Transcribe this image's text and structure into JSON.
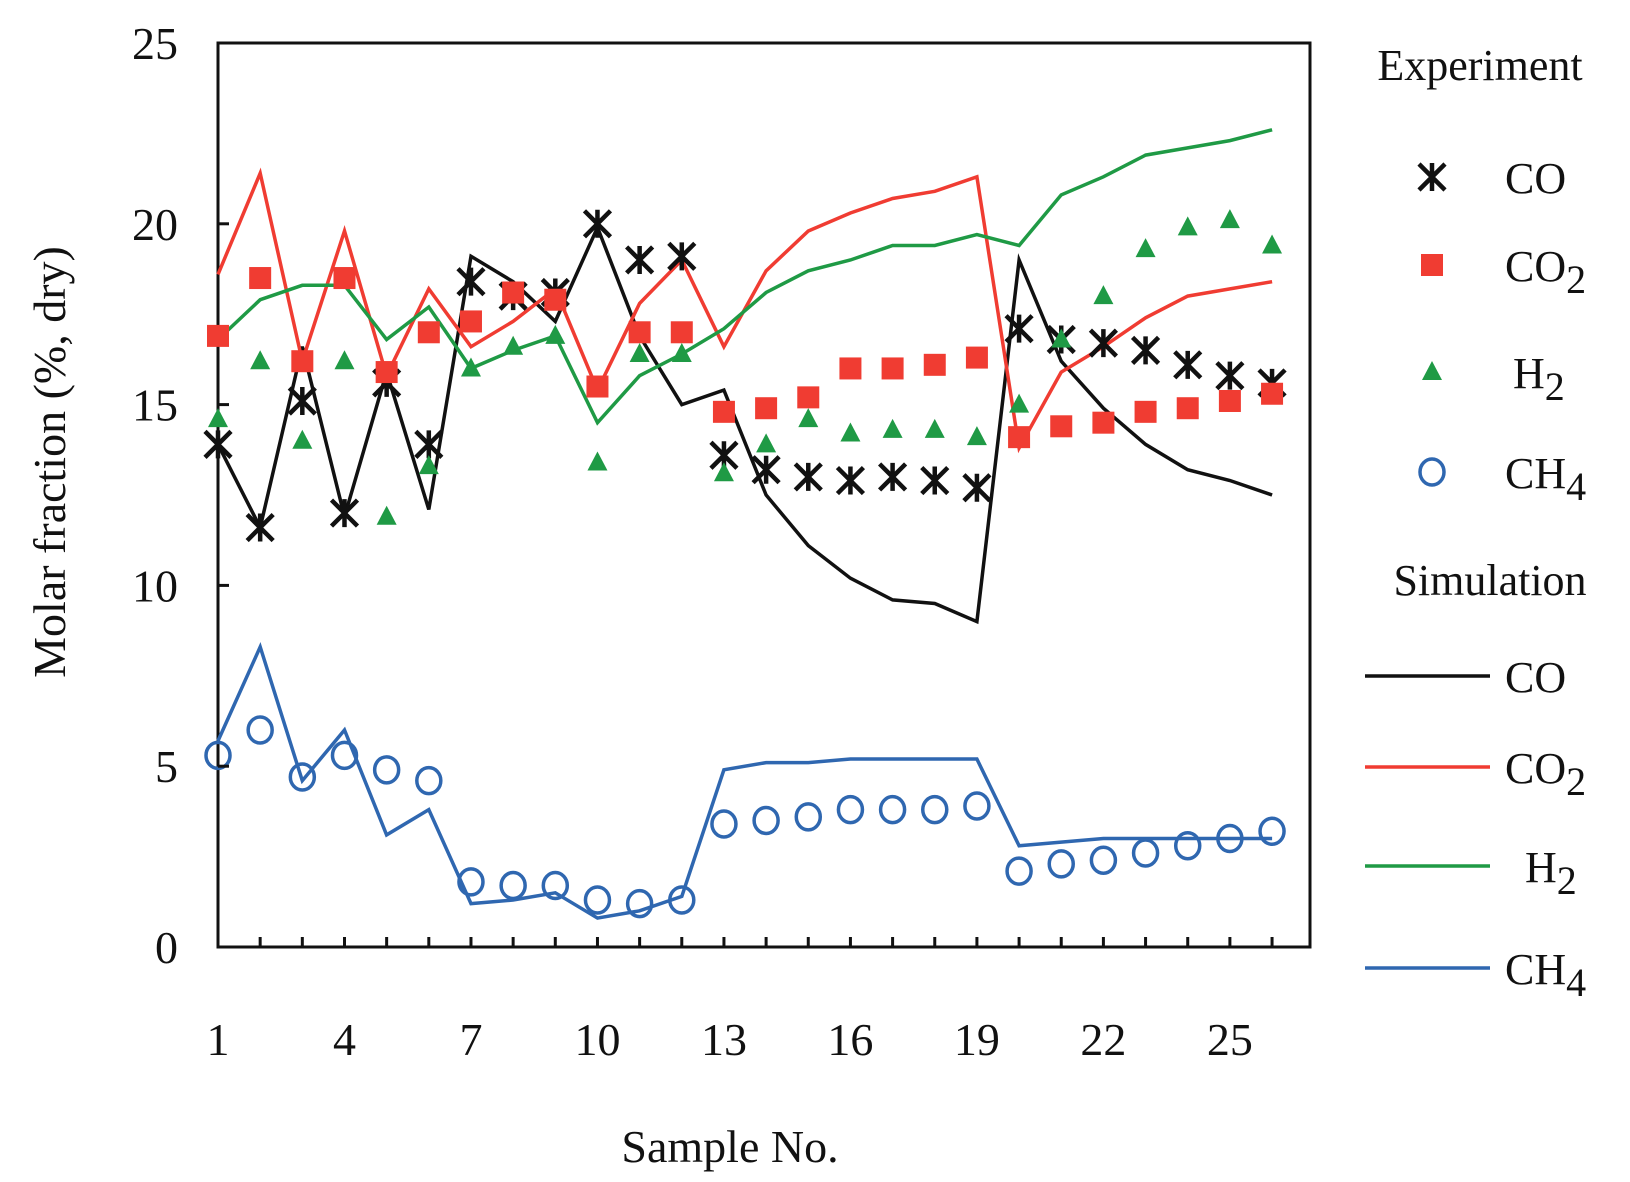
{
  "chart_data": {
    "type": "line",
    "xlabel": "Sample No.",
    "ylabel": "Molar fraction (%, dry)",
    "xlim": [
      1,
      26.9
    ],
    "ylim": [
      0,
      25
    ],
    "x_ticks": [
      1,
      4,
      7,
      10,
      13,
      16,
      19,
      22,
      25
    ],
    "y_ticks": [
      0,
      5,
      10,
      15,
      20,
      25
    ],
    "grid": false,
    "legend_position": "right, outside plot",
    "x": [
      1,
      2,
      3,
      4,
      5,
      6,
      7,
      8,
      9,
      10,
      11,
      12,
      13,
      14,
      15,
      16,
      17,
      18,
      19,
      20,
      21,
      22,
      23,
      24,
      25,
      26
    ],
    "legend": {
      "experiment_title": "Experiment",
      "simulation_title": "Simulation",
      "experiment_entries": [
        {
          "label": "CO",
          "sub": "",
          "marker": "asterisk",
          "color": "#111111"
        },
        {
          "label": "CO",
          "sub": "2",
          "marker": "square",
          "color": "#f03c32"
        },
        {
          "label": "H",
          "sub": "2",
          "marker": "triangle",
          "color": "#1f9a45"
        },
        {
          "label": "CH",
          "sub": "4",
          "marker": "circle",
          "color": "#2f67b0"
        }
      ],
      "simulation_entries": [
        {
          "label": "CO",
          "sub": "",
          "color": "#111111"
        },
        {
          "label": "CO",
          "sub": "2",
          "color": "#f03c32"
        },
        {
          "label": "H",
          "sub": "2",
          "color": "#1f9a45"
        },
        {
          "label": "CH",
          "sub": "4",
          "color": "#2f67b0"
        }
      ]
    },
    "experiment": [
      {
        "name": "CO",
        "marker": "asterisk",
        "color": "#111111",
        "values": [
          13.9,
          11.6,
          15.1,
          12.0,
          15.6,
          13.9,
          18.4,
          18.0,
          18.1,
          20.0,
          19.0,
          19.1,
          13.6,
          13.2,
          13.0,
          12.9,
          13.0,
          12.9,
          12.7,
          17.1,
          16.8,
          16.7,
          16.5,
          16.1,
          15.8,
          15.6
        ]
      },
      {
        "name": "CO2",
        "marker": "square",
        "color": "#f03c32",
        "values": [
          16.9,
          18.5,
          16.2,
          18.5,
          15.9,
          17.0,
          17.3,
          18.1,
          17.9,
          15.5,
          17.0,
          17.0,
          14.8,
          14.9,
          15.2,
          16.0,
          16.0,
          16.1,
          16.3,
          14.1,
          14.4,
          14.5,
          14.8,
          14.9,
          15.1,
          15.3
        ]
      },
      {
        "name": "H2",
        "marker": "triangle",
        "color": "#1f9a45",
        "values": [
          14.6,
          16.2,
          14.0,
          16.2,
          11.9,
          13.3,
          16.0,
          16.6,
          16.9,
          13.4,
          16.4,
          16.4,
          13.1,
          13.9,
          14.6,
          14.2,
          14.3,
          14.3,
          14.1,
          15.0,
          16.8,
          18.0,
          19.3,
          19.9,
          20.1,
          19.4
        ]
      },
      {
        "name": "CH4",
        "marker": "circle",
        "color": "#2f67b0",
        "values": [
          5.3,
          6.0,
          4.7,
          5.3,
          4.9,
          4.6,
          1.8,
          1.7,
          1.7,
          1.3,
          1.2,
          1.3,
          3.4,
          3.5,
          3.6,
          3.8,
          3.8,
          3.8,
          3.9,
          2.1,
          2.3,
          2.4,
          2.6,
          2.8,
          3.0,
          3.2
        ]
      }
    ],
    "simulation": [
      {
        "name": "CO",
        "color": "#111111",
        "values": [
          13.9,
          11.6,
          16.6,
          11.9,
          15.9,
          12.1,
          19.1,
          18.4,
          17.3,
          19.9,
          16.9,
          15.0,
          15.4,
          12.5,
          11.1,
          10.2,
          9.6,
          9.5,
          9.0,
          19.0,
          16.2,
          14.9,
          13.9,
          13.2,
          12.9,
          12.5
        ]
      },
      {
        "name": "CO2",
        "color": "#f03c32",
        "values": [
          18.6,
          21.4,
          16.2,
          19.8,
          15.8,
          18.2,
          16.6,
          17.3,
          18.2,
          15.4,
          17.8,
          19.0,
          16.6,
          18.7,
          19.8,
          20.3,
          20.7,
          20.9,
          21.3,
          13.8,
          15.9,
          16.6,
          17.4,
          18.0,
          18.2,
          18.4
        ]
      },
      {
        "name": "H2",
        "color": "#1f9a45",
        "values": [
          16.8,
          17.9,
          18.3,
          18.3,
          16.8,
          17.7,
          16.0,
          16.5,
          16.9,
          14.5,
          15.8,
          16.4,
          17.1,
          18.1,
          18.7,
          19.0,
          19.4,
          19.4,
          19.7,
          19.4,
          20.8,
          21.3,
          21.9,
          22.1,
          22.3,
          22.6
        ]
      },
      {
        "name": "CH4",
        "color": "#2f67b0",
        "values": [
          5.7,
          8.3,
          4.6,
          6.0,
          3.1,
          3.8,
          1.2,
          1.3,
          1.5,
          0.8,
          1.0,
          1.4,
          4.9,
          5.1,
          5.1,
          5.2,
          5.2,
          5.2,
          5.2,
          2.8,
          2.9,
          3.0,
          3.0,
          3.0,
          3.0,
          3.0
        ]
      }
    ]
  }
}
